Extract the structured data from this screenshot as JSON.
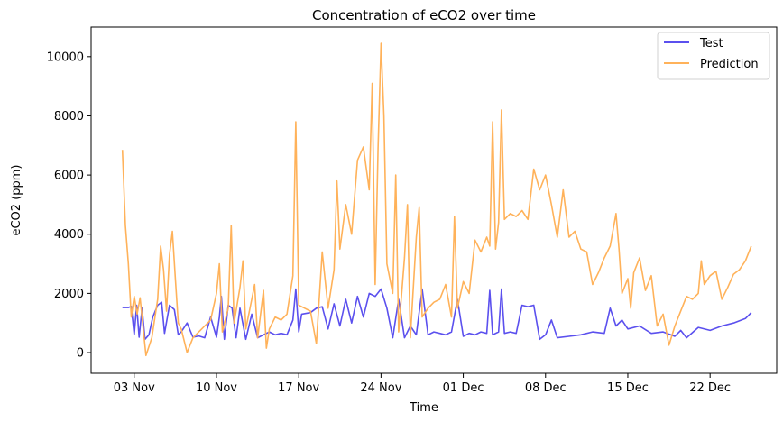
{
  "chart_data": {
    "type": "line",
    "title": "Concentration of eCO2 over time",
    "xlabel": "Time",
    "ylabel": "eCO2 (ppm)",
    "x_ticks": [
      "03 Nov",
      "10 Nov",
      "17 Nov",
      "24 Nov",
      "01 Dec",
      "08 Dec",
      "15 Dec",
      "22 Dec"
    ],
    "y_ticks": [
      0,
      2000,
      4000,
      6000,
      8000,
      10000
    ],
    "ylim": [
      -700,
      11000
    ],
    "xlim": [
      "2023-10-30T08:00",
      "2023-12-27T16:00"
    ],
    "grid": false,
    "legend_position": "top-right",
    "series": [
      {
        "name": "Test",
        "color": "#5b50ee",
        "points": [
          [
            "2023-11-02",
            1520
          ],
          [
            "2023-11-02T12:00",
            1520
          ],
          [
            "2023-11-02T18:00",
            1560
          ],
          [
            "2023-11-03",
            600
          ],
          [
            "2023-11-03T05:00",
            1600
          ],
          [
            "2023-11-03T10:00",
            520
          ],
          [
            "2023-11-03T16:00",
            1500
          ],
          [
            "2023-11-03T22:00",
            450
          ],
          [
            "2023-11-04T06:00",
            600
          ],
          [
            "2023-11-04T14:00",
            1200
          ],
          [
            "2023-11-05",
            1600
          ],
          [
            "2023-11-05T08:00",
            1700
          ],
          [
            "2023-11-05T14:00",
            650
          ],
          [
            "2023-11-06",
            1600
          ],
          [
            "2023-11-06T10:00",
            1450
          ],
          [
            "2023-11-06T18:00",
            600
          ],
          [
            "2023-11-07",
            700
          ],
          [
            "2023-11-07T12:00",
            1000
          ],
          [
            "2023-11-08",
            520
          ],
          [
            "2023-11-08T12:00",
            560
          ],
          [
            "2023-11-09",
            500
          ],
          [
            "2023-11-09T12:00",
            1200
          ],
          [
            "2023-11-10",
            520
          ],
          [
            "2023-11-10T06:00",
            1200
          ],
          [
            "2023-11-10T10:00",
            1900
          ],
          [
            "2023-11-10T16:00",
            450
          ],
          [
            "2023-11-11",
            1600
          ],
          [
            "2023-11-11T08:00",
            1500
          ],
          [
            "2023-11-11T16:00",
            500
          ],
          [
            "2023-11-12",
            1500
          ],
          [
            "2023-11-12T12:00",
            450
          ],
          [
            "2023-11-13",
            1300
          ],
          [
            "2023-11-13T12:00",
            500
          ],
          [
            "2023-11-14",
            600
          ],
          [
            "2023-11-14T12:00",
            700
          ],
          [
            "2023-11-15",
            600
          ],
          [
            "2023-11-15T12:00",
            650
          ],
          [
            "2023-11-16",
            600
          ],
          [
            "2023-11-16T12:00",
            1100
          ],
          [
            "2023-11-16T18:00",
            2150
          ],
          [
            "2023-11-17",
            700
          ],
          [
            "2023-11-17T06:00",
            1300
          ],
          [
            "2023-11-18",
            1350
          ],
          [
            "2023-11-18T12:00",
            1500
          ],
          [
            "2023-11-19",
            1550
          ],
          [
            "2023-11-19T12:00",
            800
          ],
          [
            "2023-11-20",
            1650
          ],
          [
            "2023-11-20T12:00",
            900
          ],
          [
            "2023-11-21",
            1800
          ],
          [
            "2023-11-21T12:00",
            1000
          ],
          [
            "2023-11-22",
            1900
          ],
          [
            "2023-11-22T12:00",
            1200
          ],
          [
            "2023-11-23",
            2000
          ],
          [
            "2023-11-23T12:00",
            1900
          ],
          [
            "2023-11-24",
            2150
          ],
          [
            "2023-11-24T12:00",
            1500
          ],
          [
            "2023-11-25",
            500
          ],
          [
            "2023-11-25T12:00",
            1800
          ],
          [
            "2023-11-26",
            500
          ],
          [
            "2023-11-26T12:00",
            900
          ],
          [
            "2023-11-27",
            600
          ],
          [
            "2023-11-27T12:00",
            2150
          ],
          [
            "2023-11-28",
            600
          ],
          [
            "2023-11-28T12:00",
            700
          ],
          [
            "2023-11-29",
            650
          ],
          [
            "2023-11-29T12:00",
            600
          ],
          [
            "2023-11-30",
            700
          ],
          [
            "2023-11-30T12:00",
            1800
          ],
          [
            "2023-12-01",
            550
          ],
          [
            "2023-12-01T12:00",
            650
          ],
          [
            "2023-12-02",
            600
          ],
          [
            "2023-12-02T12:00",
            700
          ],
          [
            "2023-12-03",
            650
          ],
          [
            "2023-12-03T06:00",
            2100
          ],
          [
            "2023-12-03T12:00",
            600
          ],
          [
            "2023-12-04",
            700
          ],
          [
            "2023-12-04T06:00",
            2150
          ],
          [
            "2023-12-04T12:00",
            650
          ],
          [
            "2023-12-05",
            700
          ],
          [
            "2023-12-05T12:00",
            650
          ],
          [
            "2023-12-06",
            1600
          ],
          [
            "2023-12-06T12:00",
            1550
          ],
          [
            "2023-12-07",
            1600
          ],
          [
            "2023-12-07T12:00",
            450
          ],
          [
            "2023-12-08",
            600
          ],
          [
            "2023-12-08T12:00",
            1100
          ],
          [
            "2023-12-09",
            500
          ],
          [
            "2023-12-10",
            550
          ],
          [
            "2023-12-11",
            600
          ],
          [
            "2023-12-12",
            700
          ],
          [
            "2023-12-13",
            650
          ],
          [
            "2023-12-13T12:00",
            1500
          ],
          [
            "2023-12-14",
            900
          ],
          [
            "2023-12-14T12:00",
            1100
          ],
          [
            "2023-12-15",
            800
          ],
          [
            "2023-12-16",
            900
          ],
          [
            "2023-12-17",
            650
          ],
          [
            "2023-12-18",
            700
          ],
          [
            "2023-12-19",
            550
          ],
          [
            "2023-12-19T12:00",
            750
          ],
          [
            "2023-12-20",
            500
          ],
          [
            "2023-12-21",
            850
          ],
          [
            "2023-12-22",
            750
          ],
          [
            "2023-12-23",
            900
          ],
          [
            "2023-12-24",
            1000
          ],
          [
            "2023-12-25",
            1150
          ],
          [
            "2023-12-25T12:00",
            1350
          ]
        ]
      },
      {
        "name": "Prediction",
        "color": "#ffb25a",
        "points": [
          [
            "2023-11-02",
            6850
          ],
          [
            "2023-11-02T06:00",
            4300
          ],
          [
            "2023-11-02T12:00",
            3000
          ],
          [
            "2023-11-02T18:00",
            1200
          ],
          [
            "2023-11-03",
            1900
          ],
          [
            "2023-11-03T06:00",
            1300
          ],
          [
            "2023-11-03T12:00",
            1850
          ],
          [
            "2023-11-04",
            -100
          ],
          [
            "2023-11-04T12:00",
            500
          ],
          [
            "2023-11-05",
            1800
          ],
          [
            "2023-11-05T06:00",
            3600
          ],
          [
            "2023-11-05T12:00",
            2800
          ],
          [
            "2023-11-05T18:00",
            1400
          ],
          [
            "2023-11-06",
            3300
          ],
          [
            "2023-11-06T06:00",
            4100
          ],
          [
            "2023-11-06T12:00",
            2500
          ],
          [
            "2023-11-06T18:00",
            1000
          ],
          [
            "2023-11-07",
            800
          ],
          [
            "2023-11-07T12:00",
            0
          ],
          [
            "2023-11-08",
            500
          ],
          [
            "2023-11-08T12:00",
            700
          ],
          [
            "2023-11-09",
            900
          ],
          [
            "2023-11-09T12:00",
            1100
          ],
          [
            "2023-11-10",
            2000
          ],
          [
            "2023-11-10T06:00",
            3000
          ],
          [
            "2023-11-10T12:00",
            700
          ],
          [
            "2023-11-11",
            1500
          ],
          [
            "2023-11-11T06:00",
            4300
          ],
          [
            "2023-11-11T12:00",
            1000
          ],
          [
            "2023-11-12",
            2200
          ],
          [
            "2023-11-12T06:00",
            3100
          ],
          [
            "2023-11-12T12:00",
            800
          ],
          [
            "2023-11-13",
            1800
          ],
          [
            "2023-11-13T06:00",
            2300
          ],
          [
            "2023-11-13T12:00",
            500
          ],
          [
            "2023-11-14",
            2100
          ],
          [
            "2023-11-14T06:00",
            150
          ],
          [
            "2023-11-14T12:00",
            800
          ],
          [
            "2023-11-15",
            1200
          ],
          [
            "2023-11-15T12:00",
            1100
          ],
          [
            "2023-11-16",
            1300
          ],
          [
            "2023-11-16T12:00",
            2600
          ],
          [
            "2023-11-16T18:00",
            7800
          ],
          [
            "2023-11-17",
            1600
          ],
          [
            "2023-11-17T12:00",
            1500
          ],
          [
            "2023-11-18",
            1400
          ],
          [
            "2023-11-18T12:00",
            300
          ],
          [
            "2023-11-19",
            3400
          ],
          [
            "2023-11-19T12:00",
            1500
          ],
          [
            "2023-11-20",
            2800
          ],
          [
            "2023-11-20T06:00",
            5800
          ],
          [
            "2023-11-20T12:00",
            3500
          ],
          [
            "2023-11-21",
            5000
          ],
          [
            "2023-11-21T12:00",
            4000
          ],
          [
            "2023-11-22",
            6500
          ],
          [
            "2023-11-22T12:00",
            6950
          ],
          [
            "2023-11-23",
            5500
          ],
          [
            "2023-11-23T06:00",
            9100
          ],
          [
            "2023-11-23T12:00",
            2300
          ],
          [
            "2023-11-23T18:00",
            6900
          ],
          [
            "2023-11-24",
            10450
          ],
          [
            "2023-11-24T06:00",
            8000
          ],
          [
            "2023-11-24T12:00",
            3000
          ],
          [
            "2023-11-25",
            2000
          ],
          [
            "2023-11-25T06:00",
            6000
          ],
          [
            "2023-11-25T12:00",
            700
          ],
          [
            "2023-11-26",
            3200
          ],
          [
            "2023-11-26T06:00",
            5000
          ],
          [
            "2023-11-26T12:00",
            500
          ],
          [
            "2023-11-27",
            3900
          ],
          [
            "2023-11-27T06:00",
            4900
          ],
          [
            "2023-11-27T12:00",
            1200
          ],
          [
            "2023-11-28",
            1500
          ],
          [
            "2023-11-28T12:00",
            1700
          ],
          [
            "2023-11-29",
            1800
          ],
          [
            "2023-11-29T12:00",
            2300
          ],
          [
            "2023-11-30",
            1200
          ],
          [
            "2023-11-30T06:00",
            4600
          ],
          [
            "2023-11-30T12:00",
            1500
          ],
          [
            "2023-12-01",
            2400
          ],
          [
            "2023-12-01T12:00",
            2000
          ],
          [
            "2023-12-02",
            3800
          ],
          [
            "2023-12-02T12:00",
            3400
          ],
          [
            "2023-12-03",
            3900
          ],
          [
            "2023-12-03T06:00",
            3600
          ],
          [
            "2023-12-03T12:00",
            7800
          ],
          [
            "2023-12-03T18:00",
            3500
          ],
          [
            "2023-12-04",
            4400
          ],
          [
            "2023-12-04T06:00",
            8200
          ],
          [
            "2023-12-04T12:00",
            4500
          ],
          [
            "2023-12-05",
            4700
          ],
          [
            "2023-12-05T12:00",
            4600
          ],
          [
            "2023-12-06",
            4800
          ],
          [
            "2023-12-06T12:00",
            4500
          ],
          [
            "2023-12-07",
            6200
          ],
          [
            "2023-12-07T12:00",
            5500
          ],
          [
            "2023-12-08",
            6000
          ],
          [
            "2023-12-08T12:00",
            5000
          ],
          [
            "2023-12-09",
            3900
          ],
          [
            "2023-12-09T12:00",
            5500
          ],
          [
            "2023-12-10",
            3900
          ],
          [
            "2023-12-10T12:00",
            4100
          ],
          [
            "2023-12-11",
            3500
          ],
          [
            "2023-12-11T12:00",
            3400
          ],
          [
            "2023-12-12",
            2300
          ],
          [
            "2023-12-12T12:00",
            2700
          ],
          [
            "2023-12-13",
            3200
          ],
          [
            "2023-12-13T12:00",
            3600
          ],
          [
            "2023-12-14",
            4700
          ],
          [
            "2023-12-14T06:00",
            3500
          ],
          [
            "2023-12-14T12:00",
            2000
          ],
          [
            "2023-12-15",
            2500
          ],
          [
            "2023-12-15T06:00",
            1500
          ],
          [
            "2023-12-15T12:00",
            2700
          ],
          [
            "2023-12-16",
            3200
          ],
          [
            "2023-12-16T12:00",
            2100
          ],
          [
            "2023-12-17",
            2600
          ],
          [
            "2023-12-17T12:00",
            900
          ],
          [
            "2023-12-18",
            1300
          ],
          [
            "2023-12-18T12:00",
            250
          ],
          [
            "2023-12-19",
            900
          ],
          [
            "2023-12-19T12:00",
            1400
          ],
          [
            "2023-12-20",
            1900
          ],
          [
            "2023-12-20T12:00",
            1800
          ],
          [
            "2023-12-21",
            2000
          ],
          [
            "2023-12-21T06:00",
            3100
          ],
          [
            "2023-12-21T12:00",
            2300
          ],
          [
            "2023-12-22",
            2600
          ],
          [
            "2023-12-22T12:00",
            2750
          ],
          [
            "2023-12-23",
            1800
          ],
          [
            "2023-12-23T12:00",
            2200
          ],
          [
            "2023-12-24",
            2650
          ],
          [
            "2023-12-24T12:00",
            2800
          ],
          [
            "2023-12-25",
            3100
          ],
          [
            "2023-12-25T12:00",
            3600
          ]
        ]
      }
    ]
  }
}
